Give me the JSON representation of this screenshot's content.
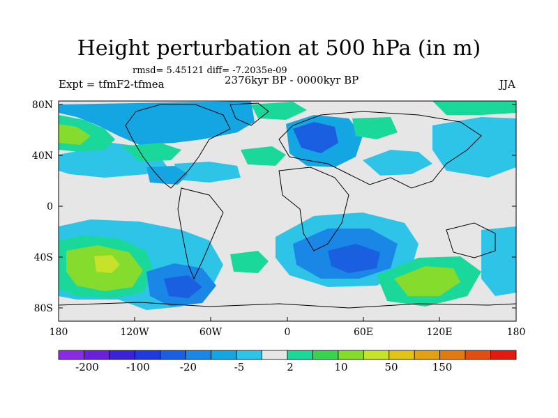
{
  "title": "Height perturbation at 500 hPa (in m)",
  "stats": "rmsd= 5.45121 diff= -7.2035e-09",
  "left_label": "Expt = tfmF2-tfmea",
  "center_label": "2376kyr BP - 0000kyr BP",
  "right_label": "JJA",
  "lat_ticks": [
    "80N",
    "40N",
    "0",
    "40S",
    "80S"
  ],
  "lon_ticks": [
    "180",
    "120W",
    "60W",
    "0",
    "60E",
    "120E",
    "180"
  ],
  "colorbar": {
    "colors": [
      "#8a2be2",
      "#6a1fd8",
      "#3b22d6",
      "#1f3bdd",
      "#1a5fe0",
      "#1a86e6",
      "#14a6e3",
      "#2ec4e8",
      "#e6e6e6",
      "#19d89a",
      "#3ad24e",
      "#86dc2c",
      "#c6e22a",
      "#e2c418",
      "#e2a014",
      "#e27a12",
      "#e24e12",
      "#e21a10"
    ],
    "labels": [
      "-200",
      "-100",
      "-20",
      "-5",
      "2",
      "10",
      "50",
      "150"
    ]
  },
  "colors": {
    "background_field": "#e6e6e6",
    "coast": "#000000"
  }
}
